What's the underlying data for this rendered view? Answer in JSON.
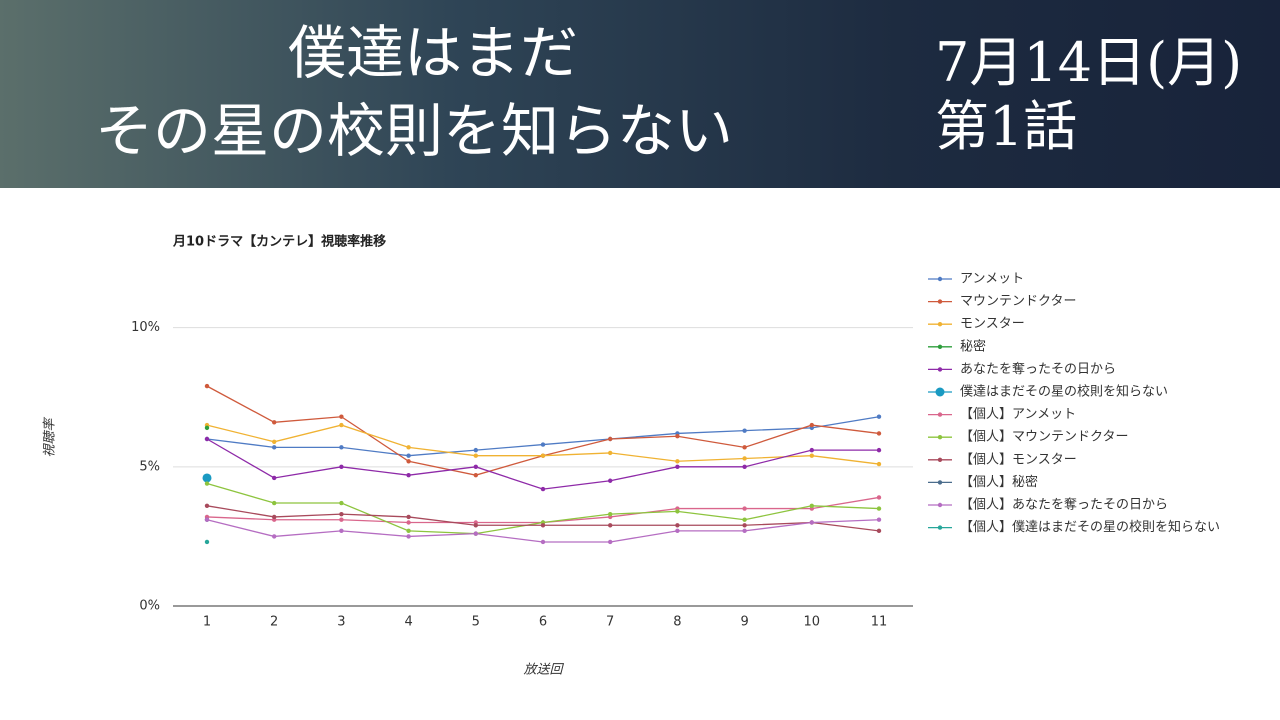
{
  "header": {
    "title_lines": [
      "僕達はまだ",
      "その星の校則を知らない"
    ],
    "date": "7月14日(月)",
    "episode": "第1話"
  },
  "chart_data": {
    "type": "line",
    "title": "月10ドラマ【カンテレ】視聴率推移",
    "xlabel": "放送回",
    "ylabel": "視聴率",
    "categories": [
      "1",
      "2",
      "3",
      "4",
      "5",
      "6",
      "7",
      "8",
      "9",
      "10",
      "11"
    ],
    "ylim": [
      0,
      12
    ],
    "yticks": [
      {
        "value": 0,
        "label": "0%"
      },
      {
        "value": 5,
        "label": "5%"
      },
      {
        "value": 10,
        "label": "10%"
      }
    ],
    "grid": true,
    "legend": "right",
    "series": [
      {
        "name": "アンメット",
        "color": "#4f7bc4",
        "values": [
          6.0,
          5.7,
          5.7,
          5.4,
          5.6,
          5.8,
          6.0,
          6.2,
          6.3,
          6.4,
          6.8
        ]
      },
      {
        "name": "マウンテンドクター",
        "color": "#cf5a3c",
        "values": [
          7.9,
          6.6,
          6.8,
          5.2,
          4.7,
          5.4,
          6.0,
          6.1,
          5.7,
          6.5,
          6.2
        ]
      },
      {
        "name": "モンスター",
        "color": "#f0b232",
        "values": [
          6.5,
          5.9,
          6.5,
          5.7,
          5.4,
          5.4,
          5.5,
          5.2,
          5.3,
          5.4,
          5.1
        ]
      },
      {
        "name": "秘密",
        "color": "#2e9e3c",
        "values": [
          6.4,
          null,
          null,
          null,
          null,
          null,
          null,
          null,
          null,
          null,
          null
        ]
      },
      {
        "name": "あなたを奪ったその日から",
        "color": "#8e2aa8",
        "values": [
          6.0,
          4.6,
          5.0,
          4.7,
          5.0,
          4.2,
          4.5,
          5.0,
          5.0,
          5.6,
          5.6
        ]
      },
      {
        "name": "僕達はまだその星の校則を知らない",
        "color": "#1a9ac2",
        "values": [
          4.6,
          null,
          null,
          null,
          null,
          null,
          null,
          null,
          null,
          null,
          null
        ]
      },
      {
        "name": "【個人】アンメット",
        "color": "#d9668c",
        "values": [
          3.2,
          3.1,
          3.1,
          3.0,
          3.0,
          3.0,
          3.2,
          3.5,
          3.5,
          3.5,
          3.9
        ]
      },
      {
        "name": "【個人】マウンテンドクター",
        "color": "#8dc43e",
        "values": [
          4.4,
          3.7,
          3.7,
          2.7,
          2.6,
          3.0,
          3.3,
          3.4,
          3.1,
          3.6,
          3.5
        ]
      },
      {
        "name": "【個人】モンスター",
        "color": "#a84a5c",
        "values": [
          3.6,
          3.2,
          3.3,
          3.2,
          2.9,
          2.9,
          2.9,
          2.9,
          2.9,
          3.0,
          2.7
        ]
      },
      {
        "name": "【個人】秘密",
        "color": "#4a6c8c",
        "values": [
          3.1,
          null,
          null,
          null,
          null,
          null,
          null,
          null,
          null,
          null,
          null
        ]
      },
      {
        "name": "【個人】あなたを奪ったその日から",
        "color": "#b56dc2",
        "values": [
          3.1,
          2.5,
          2.7,
          2.5,
          2.6,
          2.3,
          2.3,
          2.7,
          2.7,
          3.0,
          3.1
        ]
      },
      {
        "name": "【個人】僕達はまだその星の校則を知らない",
        "color": "#27a69a",
        "values": [
          2.3,
          null,
          null,
          null,
          null,
          null,
          null,
          null,
          null,
          null,
          null
        ]
      }
    ]
  }
}
